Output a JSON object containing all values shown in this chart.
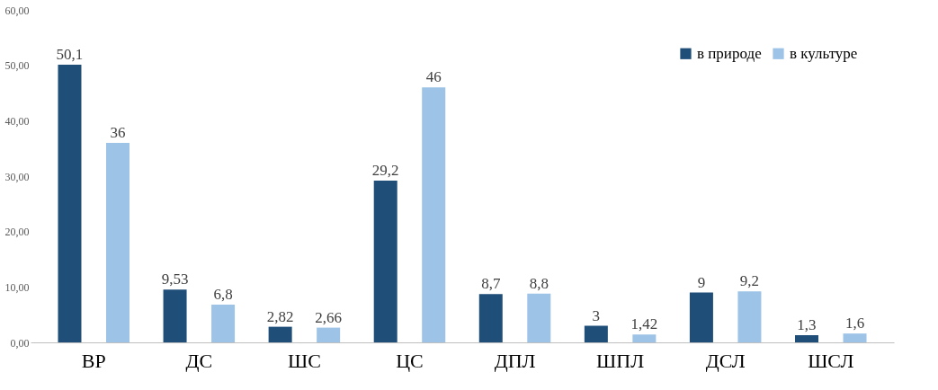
{
  "chart_data": {
    "type": "bar",
    "categories": [
      "ВР",
      "ДС",
      "ШС",
      "ЦС",
      "ДПЛ",
      "ШПЛ",
      "ДСЛ",
      "ШСЛ"
    ],
    "series": [
      {
        "name": "в природе",
        "color": "#1f4e79",
        "values": [
          50.1,
          9.53,
          2.82,
          29.2,
          8.7,
          3,
          9,
          1.3
        ],
        "value_labels": [
          "50,1",
          "9,53",
          "2,82",
          "29,2",
          "8,7",
          "3",
          "9",
          "1,3"
        ]
      },
      {
        "name": "в культуре",
        "color": "#9dc3e6",
        "values": [
          36,
          6.8,
          2.66,
          46,
          8.8,
          1.42,
          9.2,
          1.6
        ],
        "value_labels": [
          "36",
          "6,8",
          "2,66",
          "46",
          "8,8",
          "1,42",
          "9,2",
          "1,6"
        ]
      }
    ],
    "ylim": [
      0,
      60
    ],
    "yticks": [
      {
        "value": 0,
        "label": "0,00"
      },
      {
        "value": 10,
        "label": "10,00"
      },
      {
        "value": 20,
        "label": "20,00"
      },
      {
        "value": 30,
        "label": "30,00"
      },
      {
        "value": 40,
        "label": "40,00"
      },
      {
        "value": 50,
        "label": "50,00"
      },
      {
        "value": 60,
        "label": "60,00"
      }
    ],
    "grid": false,
    "legend": "top right"
  }
}
